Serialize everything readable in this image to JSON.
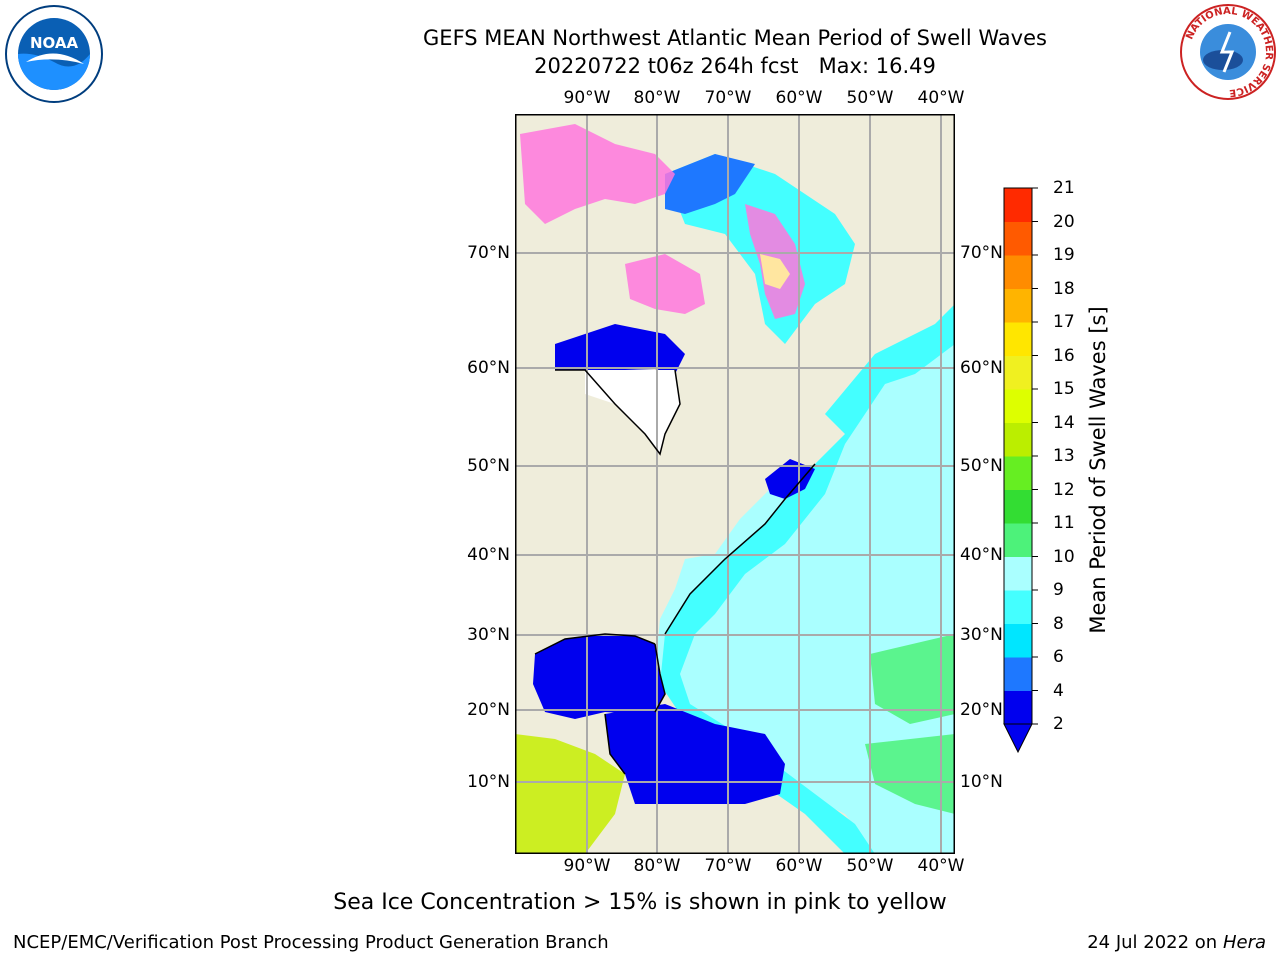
{
  "title_line1": "GEFS MEAN Northwest Atlantic Mean Period of Swell Waves",
  "title_line2": "20220722 t06z 264h fcst   Max: 16.49",
  "lon_labels": [
    "90°W",
    "80°W",
    "70°W",
    "60°W",
    "50°W",
    "40°W"
  ],
  "lat_labels": [
    "70°N",
    "60°N",
    "50°N",
    "40°N",
    "30°N",
    "20°N",
    "10°N"
  ],
  "colorbar": {
    "label": "Mean Period of Swell Waves [s]",
    "ticks": [
      "2",
      "4",
      "6",
      "8",
      "9",
      "10",
      "11",
      "12",
      "13",
      "14",
      "15",
      "16",
      "17",
      "18",
      "19",
      "20",
      "21"
    ],
    "colors": [
      "#0000ee",
      "#1e78ff",
      "#00e6ff",
      "#44ffff",
      "#aaffff",
      "#4df27a",
      "#33dd33",
      "#66ee22",
      "#bbee00",
      "#ddff00",
      "#f0f020",
      "#ffe600",
      "#ffb400",
      "#ff8c00",
      "#ff5a00",
      "#ff2a00",
      "#ff0000"
    ],
    "underflow_color": "#0000ee"
  },
  "caption": "Sea Ice Concentration > 15% is shown in pink to yellow",
  "footer_left": "NCEP/EMC/Verification Post Processing Product Generation Branch",
  "footer_date": "24 Jul 2022 on",
  "footer_host": "Hera",
  "logos": {
    "noaa_text": "NOAA",
    "nws_ring_text": "NATIONAL WEATHER SERVICE"
  },
  "map_colors": {
    "land": "#efeddb",
    "grid": "#aaaaaa",
    "sea_ice": "#ff77dd"
  }
}
